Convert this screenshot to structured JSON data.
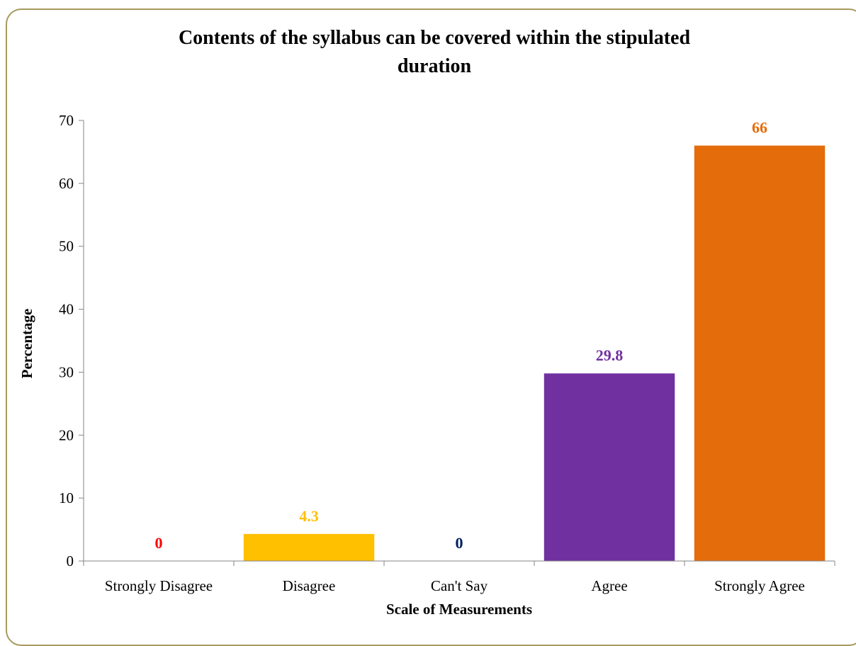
{
  "chart_data": {
    "type": "bar",
    "title": "Contents of the syllabus can be covered within the stipulated duration",
    "title_lines": [
      "Contents of the syllabus can be covered within the stipulated",
      "duration"
    ],
    "xlabel": "Scale of Measurements",
    "ylabel": "Percentage",
    "categories": [
      "Strongly Disagree",
      "Disagree",
      "Can't Say",
      "Agree",
      "Strongly Agree"
    ],
    "values": [
      0,
      4.3,
      0,
      29.8,
      66
    ],
    "data_labels": [
      "0",
      "4.3",
      "0",
      "29.8",
      "66"
    ],
    "colors": [
      "#ff0000",
      "#ffc000",
      "#002060",
      "#7030a0",
      "#e46c0a"
    ],
    "ylim": [
      0,
      70
    ],
    "yticks": [
      0,
      10,
      20,
      30,
      40,
      50,
      60,
      70
    ],
    "grid": false,
    "legend": "none"
  },
  "frame": {
    "border_color": "#a69a5e"
  }
}
